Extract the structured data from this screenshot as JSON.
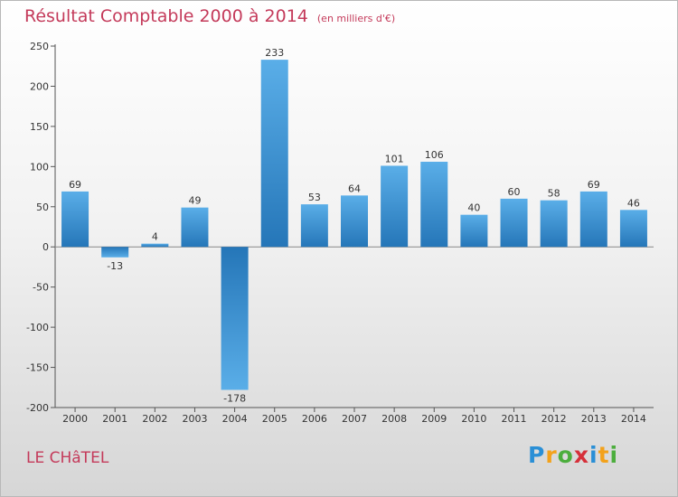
{
  "title": "Résultat Comptable 2000 à 2014",
  "unit": "(en milliers d'€)",
  "place": "LE CHâTEL",
  "logo": {
    "letters": [
      "P",
      "r",
      "o",
      "x",
      "i",
      "t",
      "i"
    ],
    "colors": [
      "#2a8fd6",
      "#f3a21b",
      "#4cae3d",
      "#d6303a",
      "#2a8fd6",
      "#f3a21b",
      "#4cae3d"
    ]
  },
  "colors": {
    "bar_light": "#5aaee8",
    "bar_dark": "#2576b8",
    "title": "#c43a5a"
  },
  "chart_data": {
    "type": "bar",
    "title": "Résultat Comptable 2000 à 2014",
    "xlabel": "",
    "ylabel": "",
    "categories": [
      "2000",
      "2001",
      "2002",
      "2003",
      "2004",
      "2005",
      "2006",
      "2007",
      "2008",
      "2009",
      "2010",
      "2011",
      "2012",
      "2013",
      "2014"
    ],
    "values": [
      69,
      -13,
      4,
      49,
      -178,
      233,
      53,
      64,
      101,
      106,
      40,
      60,
      58,
      69,
      46
    ],
    "ylim": [
      -200,
      250
    ],
    "yticks": [
      -200,
      -150,
      -100,
      -50,
      0,
      50,
      100,
      150,
      200,
      250
    ],
    "grid": false,
    "legend": "none"
  }
}
